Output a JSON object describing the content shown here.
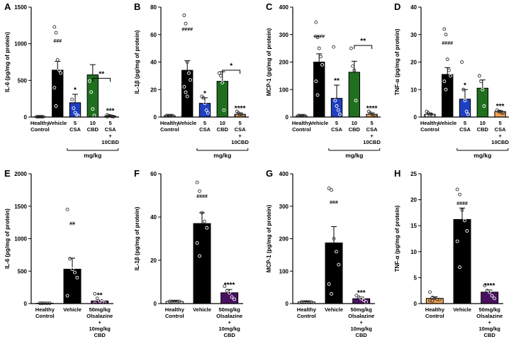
{
  "chart_data": [
    {
      "panel": "A",
      "type": "bar",
      "ylabel": "IL-6 (pg/mg of protein)",
      "ylim": [
        0,
        1500
      ],
      "ticks": [
        0,
        500,
        1000,
        1500
      ],
      "categories": [
        "Healthy\nControl",
        "Vehicle",
        "5\nCSA",
        "10\nCBD",
        "5\nCSA\n+\n10CBD"
      ],
      "values": [
        5,
        640,
        195,
        575,
        15
      ],
      "errors": [
        3,
        120,
        115,
        140,
        8
      ],
      "colors": [
        "#ffffff",
        "#000000",
        "#1f3fbf",
        "#1f6f1f",
        "#f0a050"
      ],
      "points": [
        [
          5,
          5,
          5,
          5,
          5,
          5
        ],
        [
          1230,
          1150,
          780,
          640,
          600,
          400,
          150
        ],
        [
          240,
          120,
          60,
          30,
          20
        ],
        [
          490,
          340,
          110,
          20
        ],
        [
          30,
          20,
          15,
          10,
          5,
          5
        ]
      ],
      "sig": [
        "",
        "###",
        "*",
        "",
        "***"
      ],
      "bracket": {
        "from": 3,
        "to": 4,
        "label": "**"
      },
      "group": {
        "from": 2,
        "to": 4,
        "label": "mg/kg"
      }
    },
    {
      "panel": "B",
      "type": "bar",
      "ylabel": "IL-1β (pg/mg of protein)",
      "ylim": [
        0,
        80
      ],
      "ticks": [
        0,
        20,
        40,
        60,
        80
      ],
      "categories": [
        "Healthy\nControl",
        "Vehicle",
        "5\nCSA",
        "10\nCBD",
        "5\nCSA\n+\n10CBD"
      ],
      "values": [
        1,
        34,
        10,
        26,
        2
      ],
      "errors": [
        0.5,
        7,
        4,
        7,
        1
      ],
      "colors": [
        "#ffffff",
        "#000000",
        "#1f3fbf",
        "#1f6f1f",
        "#f0a050"
      ],
      "points": [
        [
          1,
          1,
          1,
          1,
          1,
          1
        ],
        [
          74,
          68,
          40,
          32,
          27,
          22,
          18,
          15
        ],
        [
          15,
          14,
          10,
          5,
          3
        ],
        [
          32,
          30,
          25,
          5
        ],
        [
          4,
          3,
          2,
          2,
          1,
          1
        ]
      ],
      "sig": [
        "",
        "####",
        "*",
        "",
        "****"
      ],
      "bracket": {
        "from": 3,
        "to": 4,
        "label": "*"
      },
      "group": {
        "from": 2,
        "to": 4,
        "label": "mg/kg"
      }
    },
    {
      "panel": "C",
      "type": "bar",
      "ylabel": "MCP-1 (pg/mg of protein)",
      "ylim": [
        0,
        400
      ],
      "ticks": [
        0,
        100,
        200,
        300,
        400
      ],
      "categories": [
        "Healthy\nControl",
        "Vehicle",
        "5\nCSA",
        "10\nCBD",
        "5\nCSA\n+\n10CBD"
      ],
      "values": [
        5,
        200,
        68,
        163,
        10
      ],
      "errors": [
        2,
        30,
        48,
        40,
        5
      ],
      "colors": [
        "#ffffff",
        "#000000",
        "#1f3fbf",
        "#1f6f1f",
        "#f0a050"
      ],
      "points": [
        [
          5,
          5,
          5,
          5,
          5,
          5
        ],
        [
          345,
          290,
          250,
          220,
          190,
          130,
          80
        ],
        [
          255,
          60,
          40,
          25,
          10
        ],
        [
          250,
          185,
          170,
          60
        ],
        [
          20,
          15,
          10,
          5,
          5
        ]
      ],
      "sig": [
        "",
        "####",
        "**",
        "",
        "****"
      ],
      "bracket": {
        "from": 3,
        "to": 4,
        "label": "**"
      },
      "group": {
        "from": 2,
        "to": 4,
        "label": "mg/kg"
      }
    },
    {
      "panel": "D",
      "type": "bar",
      "ylabel": "TNF-α (pg/mg of protein)",
      "ylim": [
        0,
        40
      ],
      "ticks": [
        0,
        10,
        20,
        30,
        40
      ],
      "categories": [
        "Healthy\nControl",
        "Vehicle",
        "5\nCSA",
        "10\nCBD",
        "5\nCSA\n+\n10CBD"
      ],
      "values": [
        1,
        15.5,
        6.5,
        10.5,
        2
      ],
      "errors": [
        0.3,
        2.5,
        3.5,
        3,
        0.3
      ],
      "colors": [
        "#ffffff",
        "#000000",
        "#1f3fbf",
        "#1f6f1f",
        "#f0a050"
      ],
      "points": [
        [
          2,
          1.5,
          1,
          1,
          0.5,
          0.5
        ],
        [
          32,
          30,
          21,
          17,
          15,
          13,
          10
        ],
        [
          20,
          10,
          6,
          2,
          1
        ],
        [
          15,
          13,
          10,
          4
        ],
        [
          2.5,
          2,
          2,
          1.5,
          1.5
        ]
      ],
      "sig": [
        "",
        "####",
        "*",
        "",
        "***"
      ],
      "group": {
        "from": 2,
        "to": 4,
        "label": "mg/kg"
      }
    },
    {
      "panel": "E",
      "type": "bar",
      "ylabel": "IL-6 (pg/mg of protein)",
      "ylim": [
        0,
        2000
      ],
      "ticks": [
        0,
        500,
        1000,
        1500,
        2000
      ],
      "categories": [
        "Healthy\nControl",
        "Vehicle",
        "50mg/kg\nOlsalazine\n+\n10mg/kg\nCBD"
      ],
      "values": [
        5,
        530,
        40
      ],
      "errors": [
        2,
        170,
        20
      ],
      "colors": [
        "#ffffff",
        "#000000",
        "#4a1060"
      ],
      "points": [
        [
          5,
          5,
          5,
          5,
          5,
          5,
          5
        ],
        [
          1450,
          690,
          530,
          480,
          400,
          120
        ],
        [
          150,
          80,
          40,
          20,
          10,
          5
        ]
      ],
      "sig": [
        "",
        "##",
        "**"
      ]
    },
    {
      "panel": "F",
      "type": "bar",
      "ylabel": "IL-1β (pg/mg of protein)",
      "ylim": [
        0,
        60
      ],
      "ticks": [
        0,
        20,
        40,
        60
      ],
      "categories": [
        "Healthy\nControl",
        "Vehicle",
        "50mg/kg\nOlsalazine\n+\n10mg/kg\nCBD"
      ],
      "values": [
        1,
        37,
        5
      ],
      "errors": [
        0.3,
        5,
        1.5
      ],
      "colors": [
        "#ffffff",
        "#000000",
        "#4a1060"
      ],
      "points": [
        [
          1,
          1,
          1,
          1,
          1,
          1
        ],
        [
          56,
          52,
          42,
          38,
          35,
          28,
          22
        ],
        [
          8,
          6,
          5,
          3,
          2
        ]
      ],
      "sig": [
        "",
        "####",
        "****"
      ]
    },
    {
      "panel": "G",
      "type": "bar",
      "ylabel": "MCP-1 (pg/mg of protein)",
      "ylim": [
        0,
        400
      ],
      "ticks": [
        0,
        100,
        200,
        300,
        400
      ],
      "categories": [
        "Healthy\nControl",
        "Vehicle",
        "50mg/kg\nOlsalazine\n+\n10mg/kg\nCBD"
      ],
      "values": [
        5,
        187,
        15
      ],
      "errors": [
        2,
        50,
        5
      ],
      "colors": [
        "#ffffff",
        "#000000",
        "#4a1060"
      ],
      "points": [
        [
          5,
          5,
          5,
          5,
          5,
          5
        ],
        [
          355,
          350,
          200,
          160,
          120,
          60,
          30
        ],
        [
          25,
          20,
          15,
          10,
          5
        ]
      ],
      "sig": [
        "",
        "###",
        "***"
      ]
    },
    {
      "panel": "H",
      "type": "bar",
      "ylabel": "TNF-α (pg/mg of protein)",
      "ylim": [
        0,
        25
      ],
      "ticks": [
        0,
        5,
        10,
        15,
        20,
        25
      ],
      "categories": [
        "Healthy\nControl",
        "Vehicle",
        "50mg/kg\nOlsalazine\n+\n10mg/kg\nCBD"
      ],
      "values": [
        1,
        16.2,
        2.2
      ],
      "errors": [
        0.3,
        2.2,
        0.4
      ],
      "colors": [
        "#f0a050",
        "#000000",
        "#4a1060"
      ],
      "points": [
        [
          2.2,
          1.2,
          1,
          0.8,
          0.8,
          0.6,
          0.5
        ],
        [
          22,
          21,
          18,
          16,
          14,
          12,
          7
        ],
        [
          3.5,
          2.5,
          2.2,
          1.5,
          1
        ]
      ],
      "sig": [
        "",
        "####",
        "****"
      ]
    }
  ]
}
